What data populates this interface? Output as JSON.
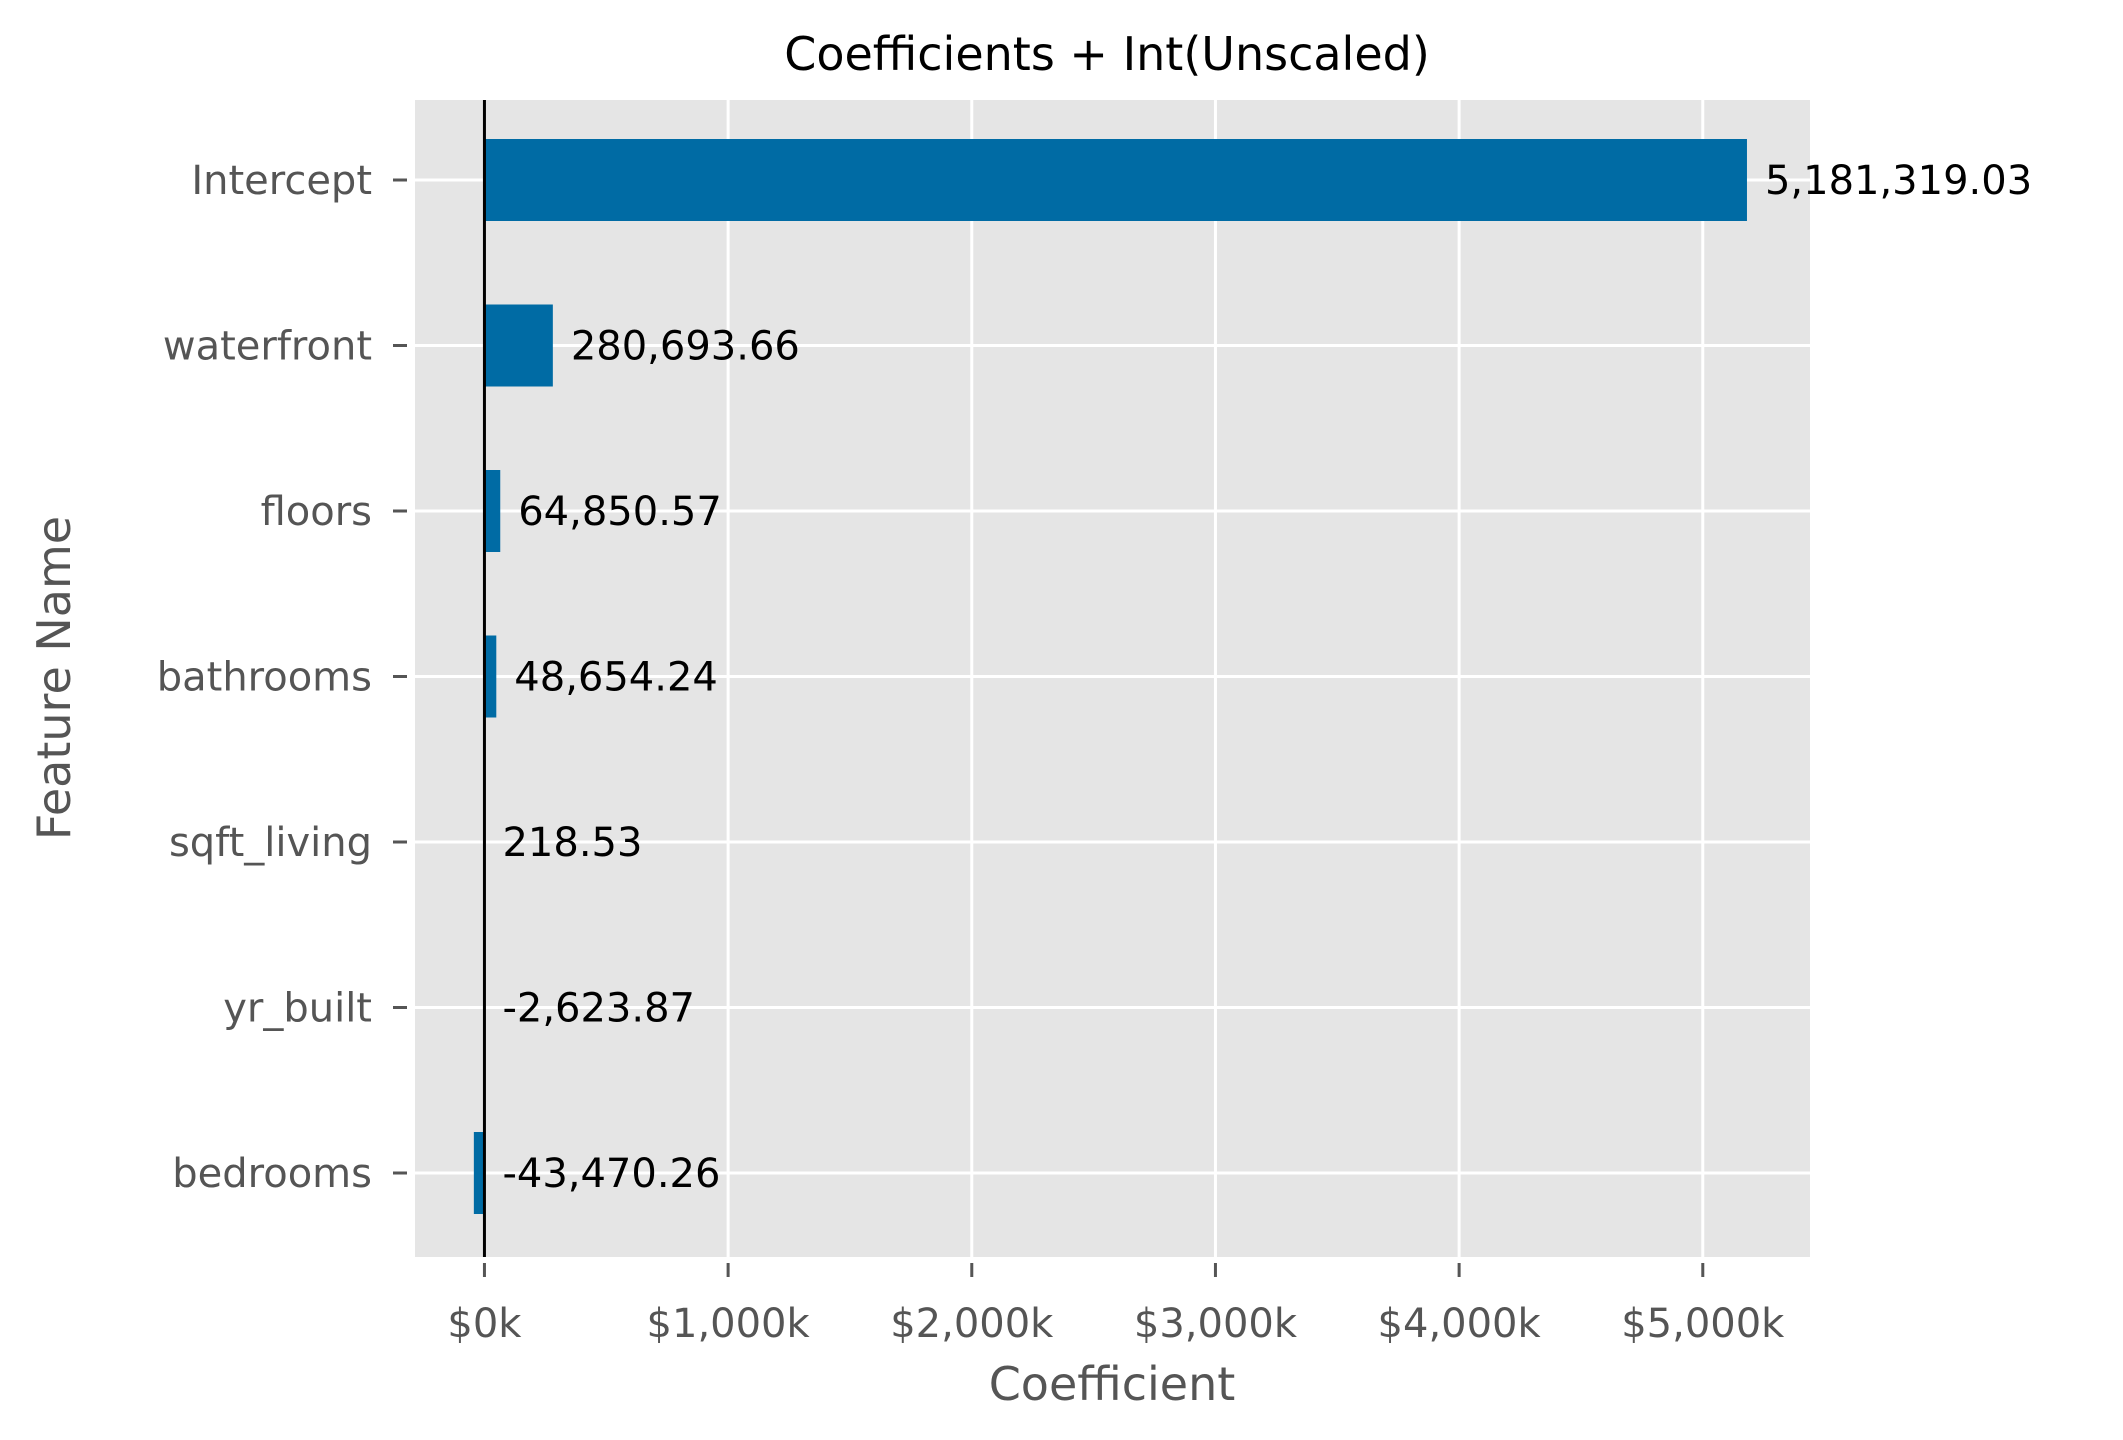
{
  "chart_data": {
    "type": "bar",
    "orientation": "horizontal",
    "title": "Coefficients + Int(Unscaled)",
    "xlabel": "Coefficient",
    "ylabel": "Feature Name",
    "categories": [
      "Intercept",
      "waterfront",
      "floors",
      "bathrooms",
      "sqft_living",
      "yr_built",
      "bedrooms"
    ],
    "values": [
      5181319.03,
      280693.66,
      64850.57,
      48654.24,
      218.53,
      -2623.87,
      -43470.26
    ],
    "value_labels": [
      "5,181,319.03",
      "280,693.66",
      "64,850.57",
      "48,654.24",
      "218.53",
      "-2,623.87",
      "-43,470.26"
    ],
    "xlim": [
      -285000,
      5440000
    ],
    "xticks": [
      0,
      1000000,
      2000000,
      3000000,
      4000000,
      5000000
    ],
    "xtick_labels": [
      "$0k",
      "$1,000k",
      "$2,000k",
      "$3,000k",
      "$4,000k",
      "$5,000k"
    ],
    "grid": true,
    "bar_color": "#006ba4",
    "plot_background": "#e5e5e5",
    "grid_color": "#ffffff",
    "zero_line_color": "#000000"
  }
}
